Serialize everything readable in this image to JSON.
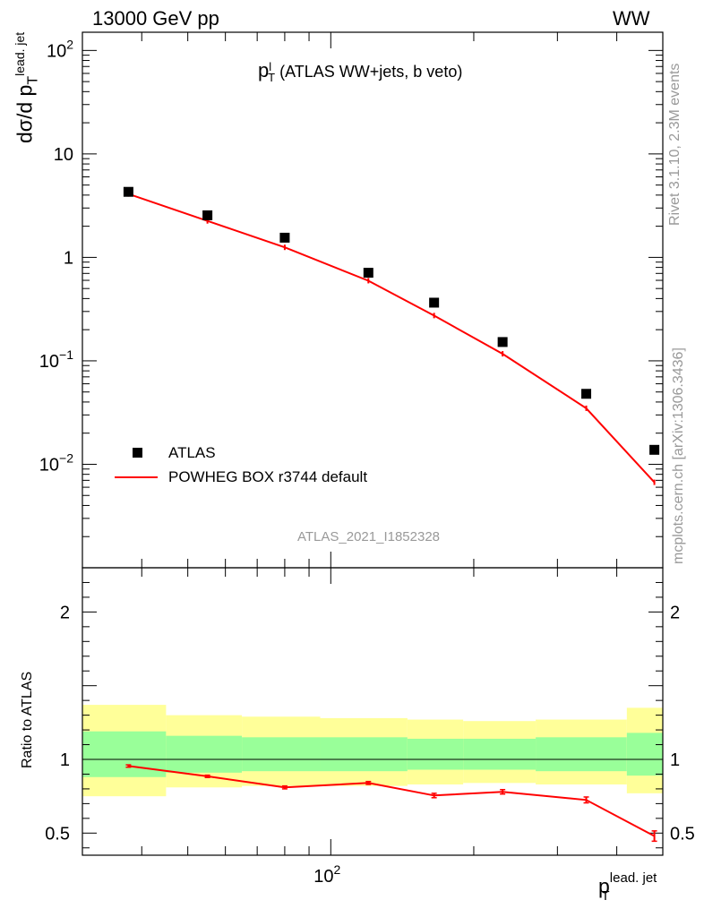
{
  "header": {
    "energy_label": "13000 GeV pp",
    "process_label": "WW",
    "side_label": "Rivet 3.1.10,  2.3M events",
    "side_label2": "mcplots.cern.ch [arXiv:1306.3436]",
    "analysis_id": "ATLAS_2021_I1852328"
  },
  "chart_data": [
    {
      "type": "scatter",
      "title": "(ATLAS WW+jets, b veto)",
      "title_var": "p",
      "title_sup": "l",
      "title_sub": "T",
      "ylabel": "dσ/d p",
      "ylabel_sub": "T",
      "ylabel_sup": "lead. jet",
      "yscale": "log",
      "xscale": "log",
      "xlim": [
        30,
        500
      ],
      "ylim": [
        0.001,
        150
      ],
      "ytick_labels": [
        "10^2",
        "10",
        "1",
        "10^-1",
        "10^-2"
      ],
      "ytick_values": [
        100,
        10,
        1,
        0.1,
        0.01
      ],
      "legend_placement": "lower-left",
      "series": [
        {
          "name": "ATLAS",
          "style": "markers",
          "color": "#000000",
          "x": [
            37.5,
            55,
            80,
            120,
            165,
            230,
            345,
            480
          ],
          "y": [
            4.3,
            2.55,
            1.55,
            0.71,
            0.365,
            0.152,
            0.048,
            0.0138
          ]
        },
        {
          "name": "POWHEG BOX r3744 default",
          "style": "line",
          "color": "#ff0000",
          "x": [
            37.5,
            55,
            80,
            120,
            165,
            230,
            345,
            480
          ],
          "y": [
            4.1,
            2.25,
            1.25,
            0.595,
            0.274,
            0.117,
            0.0348,
            0.0067
          ]
        }
      ]
    },
    {
      "type": "line",
      "ylabel": "Ratio to ATLAS",
      "xlabel": "p",
      "xlabel_sub": "T",
      "xlabel_sup": "lead. jet",
      "xscale": "log",
      "xlim": [
        30,
        500
      ],
      "ylim": [
        0.35,
        2.3
      ],
      "ytick_labels": [
        "0.5",
        "1",
        "2"
      ],
      "ytick_values": [
        0.5,
        1,
        2
      ],
      "xtick_labels": [
        "10^2"
      ],
      "xtick_values": [
        100
      ],
      "bands": {
        "edges": [
          30,
          45,
          65,
          95,
          145,
          190,
          270,
          420,
          500
        ],
        "yellow_lo": [
          0.75,
          0.81,
          0.82,
          0.82,
          0.83,
          0.84,
          0.83,
          0.77
        ],
        "yellow_hi": [
          1.37,
          1.3,
          1.29,
          1.28,
          1.27,
          1.26,
          1.27,
          1.35
        ],
        "green_lo": [
          0.88,
          0.91,
          0.92,
          0.92,
          0.93,
          0.93,
          0.92,
          0.89
        ],
        "green_hi": [
          1.19,
          1.16,
          1.15,
          1.15,
          1.14,
          1.14,
          1.15,
          1.18
        ]
      },
      "series": [
        {
          "name": "POWHEG BOX r3744 default",
          "color": "#ff0000",
          "x": [
            37.5,
            55,
            80,
            120,
            165,
            230,
            345,
            480
          ],
          "y": [
            0.955,
            0.885,
            0.81,
            0.84,
            0.755,
            0.78,
            0.725,
            0.48
          ],
          "err": [
            0.008,
            0.008,
            0.01,
            0.01,
            0.015,
            0.015,
            0.02,
            0.035
          ]
        }
      ]
    }
  ]
}
